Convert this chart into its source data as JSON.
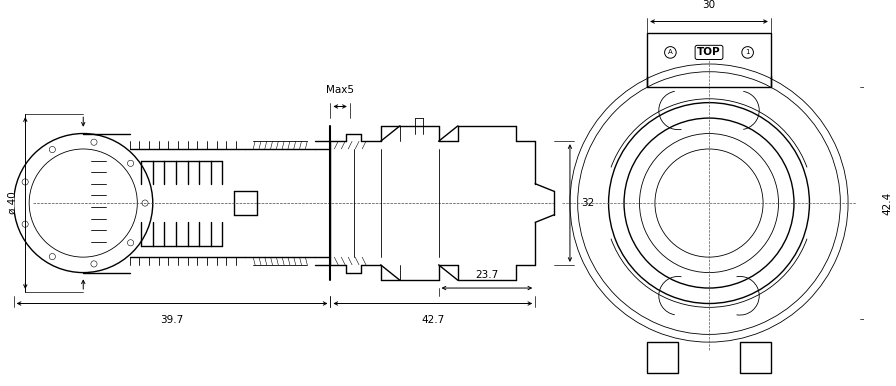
{
  "bg_color": "#ffffff",
  "line_color": "#000000",
  "dim_color": "#000000",
  "thin_lw": 0.6,
  "medium_lw": 1.0,
  "thick_lw": 1.5,
  "dash_lw": 0.6,
  "font_size": 7.5,
  "fig_width": 8.96,
  "fig_height": 3.86,
  "dpi": 100,
  "dims": {
    "max5_label": "Max5",
    "phi40_label": "ø 40",
    "dim32_label": "32",
    "dim39_7_label": "39.7",
    "dim42_7_label": "42.7",
    "dim23_7_label": "23.7",
    "dim30_label": "30",
    "dim42_4_label": "42.4",
    "top_label": "TOP"
  }
}
